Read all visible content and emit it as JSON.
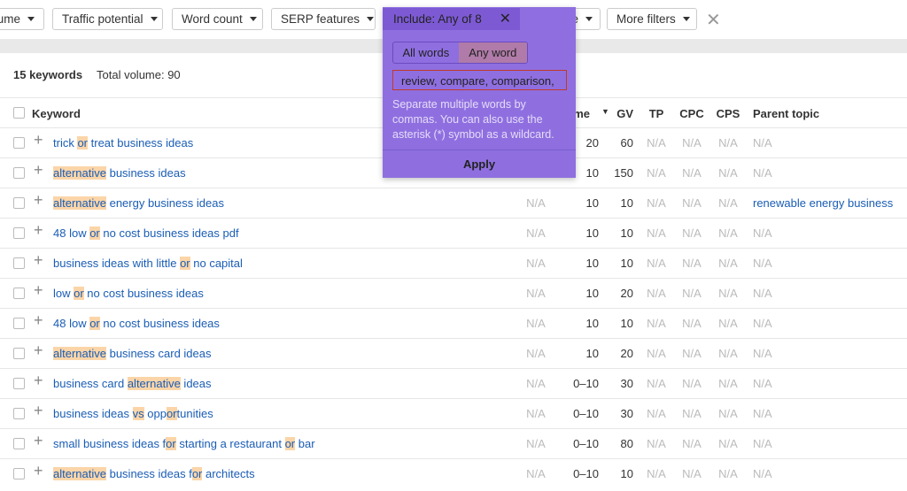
{
  "filters": [
    "ume",
    "Traffic potential",
    "Word count",
    "SERP features",
    "Include: Any of 8",
    "Exclude",
    "More filters"
  ],
  "popup": {
    "tabs": [
      "All words",
      "Any word"
    ],
    "input": "review, compare, comparison,",
    "help": "Separate multiple words by commas. You can also use the asterisk (*) symbol as a wildcard.",
    "apply": "Apply"
  },
  "summary": {
    "count": "15 keywords",
    "volume": "Total volume: 90"
  },
  "table": {
    "headers": [
      "Keyword",
      "ume",
      "GV",
      "TP",
      "CPC",
      "CPS",
      "Parent topic"
    ],
    "rows": [
      {
        "keyword": [
          {
            "text": "trick "
          },
          {
            "mark": "or"
          },
          {
            "text": " treat business ideas"
          }
        ],
        "volume": 20,
        "gv": 60,
        "tp": "N/A",
        "cpc": "N/A",
        "cps": "N/A",
        "parent": "N/A"
      },
      {
        "keyword": [
          {
            "mark": "alternative"
          },
          {
            "text": " business ideas"
          }
        ],
        "volume": 10,
        "gv": 150,
        "tp": "N/A",
        "cpc": "N/A",
        "cps": "N/A",
        "parent": "N/A"
      },
      {
        "keyword": [
          {
            "mark": "alternative"
          },
          {
            "text": " energy business ideas"
          }
        ],
        "kd": "N/A",
        "volume": 10,
        "gv": 10,
        "tp": "N/A",
        "cpc": "N/A",
        "cps": "N/A",
        "parent": "renewable energy business"
      },
      {
        "keyword": [
          {
            "text": "48 low "
          },
          {
            "mark": "or"
          },
          {
            "text": " no cost business ideas pdf"
          }
        ],
        "kd": "N/A",
        "volume": 10,
        "gv": 10,
        "tp": "N/A",
        "cpc": "N/A",
        "cps": "N/A",
        "parent": "N/A"
      },
      {
        "keyword": [
          {
            "text": "business ideas with little "
          },
          {
            "mark": "or"
          },
          {
            "text": " no capital"
          }
        ],
        "kd": "N/A",
        "volume": 10,
        "gv": 10,
        "tp": "N/A",
        "cpc": "N/A",
        "cps": "N/A",
        "parent": "N/A"
      },
      {
        "keyword": [
          {
            "text": "low "
          },
          {
            "mark": "or"
          },
          {
            "text": " no cost business ideas"
          }
        ],
        "kd": "N/A",
        "volume": 10,
        "gv": 20,
        "tp": "N/A",
        "cpc": "N/A",
        "cps": "N/A",
        "parent": "N/A"
      },
      {
        "keyword": [
          {
            "text": "48 low "
          },
          {
            "mark": "or"
          },
          {
            "text": " no cost business ideas"
          }
        ],
        "kd": "N/A",
        "volume": 10,
        "gv": 10,
        "tp": "N/A",
        "cpc": "N/A",
        "cps": "N/A",
        "parent": "N/A"
      },
      {
        "keyword": [
          {
            "mark": "alternative"
          },
          {
            "text": " business card ideas"
          }
        ],
        "kd": "N/A",
        "volume": 10,
        "gv": 20,
        "tp": "N/A",
        "cpc": "N/A",
        "cps": "N/A",
        "parent": "N/A"
      },
      {
        "keyword": [
          {
            "text": "business card "
          },
          {
            "mark": "alternative"
          },
          {
            "text": " ideas"
          }
        ],
        "kd": "N/A",
        "volume": "0–10",
        "gv": 30,
        "tp": "N/A",
        "cpc": "N/A",
        "cps": "N/A",
        "parent": "N/A"
      },
      {
        "keyword": [
          {
            "text": "business ideas "
          },
          {
            "mark": "vs"
          },
          {
            "text": " opp"
          },
          {
            "mark": "or"
          },
          {
            "text": "tunities"
          }
        ],
        "kd": "N/A",
        "volume": "0–10",
        "gv": 30,
        "tp": "N/A",
        "cpc": "N/A",
        "cps": "N/A",
        "parent": "N/A"
      },
      {
        "keyword": [
          {
            "text": "small business ideas f"
          },
          {
            "mark": "or"
          },
          {
            "text": " starting a restaurant "
          },
          {
            "mark": "or"
          },
          {
            "text": " bar"
          }
        ],
        "kd": "N/A",
        "volume": "0–10",
        "gv": 80,
        "tp": "N/A",
        "cpc": "N/A",
        "cps": "N/A",
        "parent": "N/A"
      },
      {
        "keyword": [
          {
            "mark": "alternative"
          },
          {
            "text": " business ideas f"
          },
          {
            "mark": "or"
          },
          {
            "text": " architects"
          }
        ],
        "kd": "N/A",
        "volume": "0–10",
        "gv": 10,
        "tp": "N/A",
        "cpc": "N/A",
        "cps": "N/A",
        "parent": "N/A"
      }
    ]
  }
}
